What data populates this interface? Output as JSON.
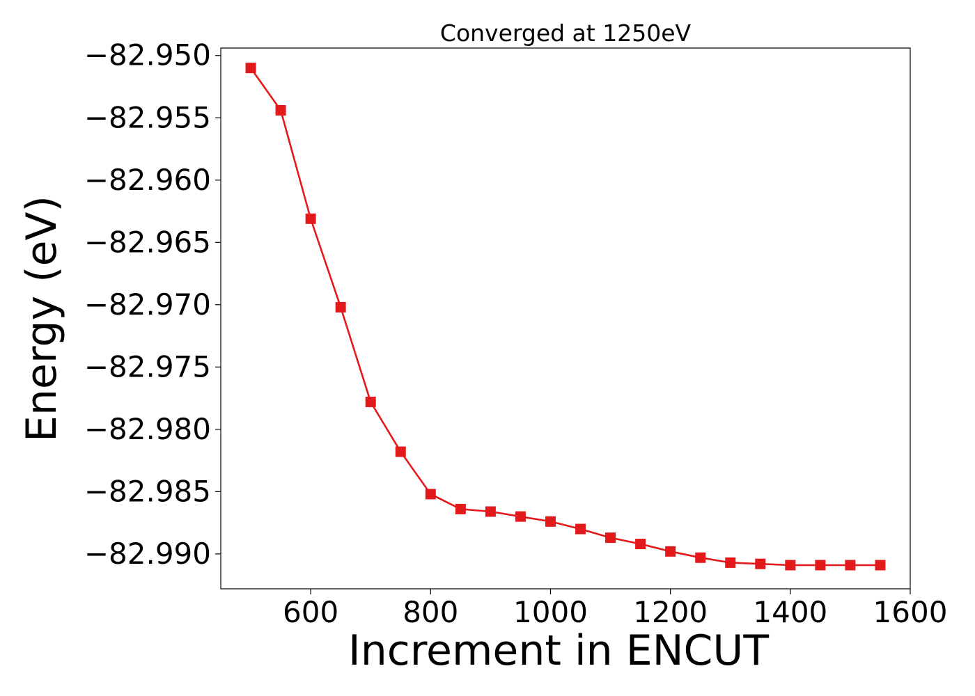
{
  "chart_data": {
    "type": "line",
    "title": "Converged at 1250eV",
    "xlabel": "Increment in ENCUT",
    "ylabel": "Energy (eV)",
    "xlim": [
      450,
      1600
    ],
    "ylim": [
      -82.9928,
      -82.9494
    ],
    "x_ticks": [
      600,
      800,
      1000,
      1200,
      1400,
      1600
    ],
    "x_tick_labels": [
      "600",
      "800",
      "1000",
      "1200",
      "1400",
      "1600"
    ],
    "y_ticks": [
      -82.95,
      -82.955,
      -82.96,
      -82.965,
      -82.97,
      -82.975,
      -82.98,
      -82.985,
      -82.99
    ],
    "y_tick_labels": [
      "−82.950",
      "−82.955",
      "−82.960",
      "−82.965",
      "−82.970",
      "−82.975",
      "−82.980",
      "−82.985",
      "−82.990"
    ],
    "grid": false,
    "series": [
      {
        "color": "#e31a1c",
        "marker": "square",
        "x": [
          500,
          550,
          600,
          650,
          700,
          750,
          800,
          850,
          900,
          950,
          1000,
          1050,
          1100,
          1150,
          1200,
          1250,
          1300,
          1350,
          1400,
          1450,
          1500,
          1550
        ],
        "y": [
          -82.951,
          -82.9544,
          -82.9631,
          -82.9702,
          -82.9778,
          -82.9818,
          -82.9852,
          -82.9864,
          -82.9866,
          -82.987,
          -82.9874,
          -82.988,
          -82.9887,
          -82.9892,
          -82.9898,
          -82.9903,
          -82.9907,
          -82.9908,
          -82.9909,
          -82.9909,
          -82.9909,
          -82.9909
        ]
      }
    ]
  }
}
